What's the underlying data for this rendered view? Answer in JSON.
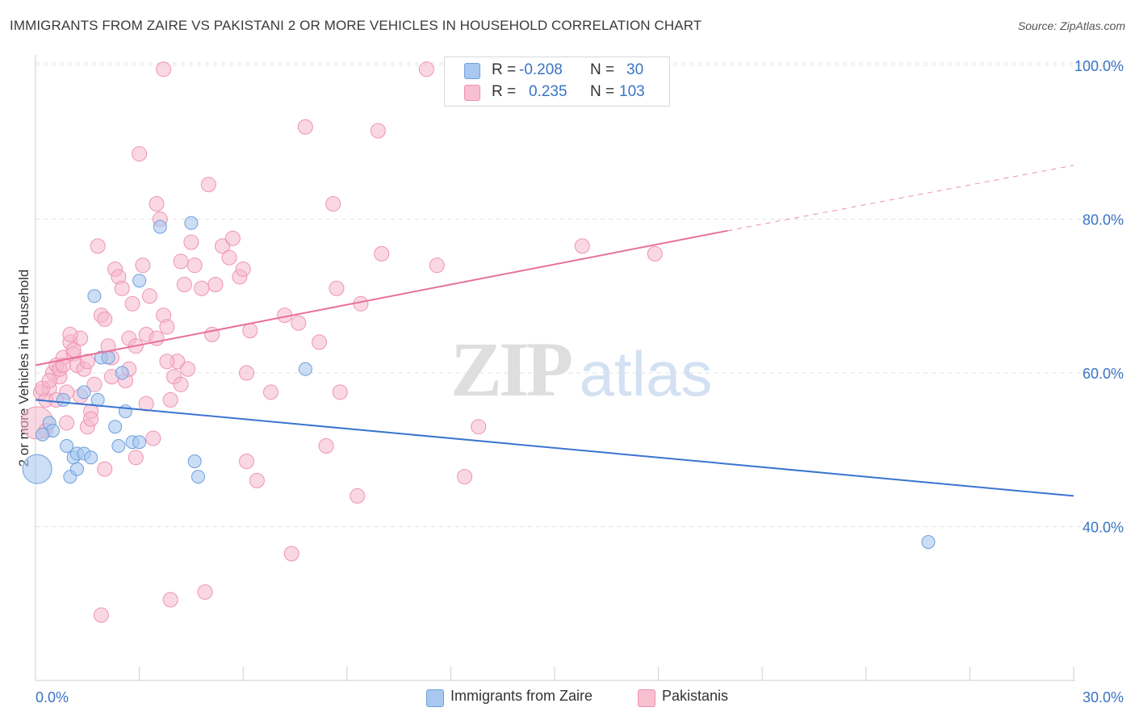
{
  "title": "IMMIGRANTS FROM ZAIRE VS PAKISTANI 2 OR MORE VEHICLES IN HOUSEHOLD CORRELATION CHART",
  "source": "Source: ZipAtlas.com",
  "watermark": {
    "zip": "ZIP",
    "atlas": "atlas"
  },
  "legend": {
    "rows": [
      {
        "r_label": "R =",
        "r_value": "-0.208",
        "n_label": "N =",
        "n_value": "30",
        "color": "#a8c8f0",
        "border": "#6f9fdc"
      },
      {
        "r_label": "R =",
        "r_value": "0.235",
        "n_label": "N =",
        "n_value": "103",
        "color": "#f8bfd0",
        "border": "#ee8fb0"
      }
    ]
  },
  "bottom_legend": [
    {
      "label": "Immigrants from Zaire",
      "color": "#a8c8f0",
      "border": "#6f9fdc"
    },
    {
      "label": "Pakistanis",
      "color": "#f8bfd0",
      "border": "#ee8fb0"
    }
  ],
  "colors": {
    "blue": "#3a74d0",
    "pink": "#e8709a",
    "blue_fill": "#a8c8f0",
    "pink_fill": "#f6b8cc",
    "axis_text": "#3a74c4"
  },
  "chart_data": {
    "type": "scatter",
    "title": "IMMIGRANTS FROM ZAIRE VS PAKISTANI 2 OR MORE VEHICLES IN HOUSEHOLD CORRELATION CHART",
    "xlabel": "",
    "ylabel": "2 or more Vehicles in Household",
    "xlim": [
      0,
      30
    ],
    "ylim": [
      20,
      102
    ],
    "x_ticks": [
      0,
      30
    ],
    "x_tick_labels": [
      "0.0%",
      "30.0%"
    ],
    "y_ticks": [
      40,
      60,
      80,
      100
    ],
    "y_tick_labels": [
      "40.0%",
      "60.0%",
      "80.0%",
      "100.0%"
    ],
    "grid": true,
    "series": [
      {
        "name": "Immigrants from Zaire",
        "points": [
          [
            0.05,
            47.5
          ],
          [
            0.4,
            53.5
          ],
          [
            0.5,
            52.5
          ],
          [
            0.8,
            56.5
          ],
          [
            0.9,
            50.5
          ],
          [
            1.0,
            46.5
          ],
          [
            1.1,
            49.0
          ],
          [
            1.2,
            49.5
          ],
          [
            1.4,
            49.5
          ],
          [
            1.6,
            49.0
          ],
          [
            1.4,
            57.5
          ],
          [
            1.7,
            70.0
          ],
          [
            1.9,
            62.0
          ],
          [
            2.1,
            62.0
          ],
          [
            2.3,
            53.0
          ],
          [
            2.4,
            50.5
          ],
          [
            2.5,
            60.0
          ],
          [
            2.6,
            55.0
          ],
          [
            2.8,
            51.0
          ],
          [
            3.0,
            51.0
          ],
          [
            3.0,
            72.0
          ],
          [
            3.6,
            79.0
          ],
          [
            4.5,
            79.5
          ],
          [
            4.6,
            48.5
          ],
          [
            4.7,
            46.5
          ],
          [
            7.8,
            60.5
          ],
          [
            1.8,
            56.5
          ],
          [
            0.2,
            52.0
          ],
          [
            1.2,
            47.5
          ],
          [
            25.8,
            38.0
          ]
        ],
        "trend": {
          "x0": 0,
          "y0": 56.5,
          "x1": 30,
          "y1": 44.0
        }
      },
      {
        "name": "Pakistanis",
        "points": [
          [
            0.05,
            53.5
          ],
          [
            0.15,
            57.5
          ],
          [
            0.3,
            56.5
          ],
          [
            0.4,
            58.0
          ],
          [
            0.5,
            60.0
          ],
          [
            0.6,
            61.0
          ],
          [
            0.7,
            59.5
          ],
          [
            0.8,
            62.0
          ],
          [
            0.9,
            57.5
          ],
          [
            1.0,
            64.0
          ],
          [
            1.1,
            62.5
          ],
          [
            1.2,
            61.0
          ],
          [
            1.3,
            64.5
          ],
          [
            1.4,
            60.5
          ],
          [
            1.5,
            61.5
          ],
          [
            1.6,
            55.0
          ],
          [
            1.7,
            58.5
          ],
          [
            1.8,
            76.5
          ],
          [
            1.9,
            67.5
          ],
          [
            2.0,
            67.0
          ],
          [
            2.1,
            63.5
          ],
          [
            2.2,
            59.5
          ],
          [
            2.3,
            73.5
          ],
          [
            2.4,
            72.5
          ],
          [
            2.5,
            71.0
          ],
          [
            2.6,
            59.0
          ],
          [
            2.7,
            64.5
          ],
          [
            2.8,
            69.0
          ],
          [
            2.9,
            63.5
          ],
          [
            3.0,
            88.5
          ],
          [
            3.1,
            74.0
          ],
          [
            3.2,
            65.0
          ],
          [
            3.3,
            70.0
          ],
          [
            3.5,
            82.0
          ],
          [
            3.6,
            80.0
          ],
          [
            3.7,
            67.5
          ],
          [
            3.8,
            66.0
          ],
          [
            3.9,
            56.5
          ],
          [
            4.0,
            59.5
          ],
          [
            4.1,
            61.5
          ],
          [
            4.2,
            74.5
          ],
          [
            4.3,
            71.5
          ],
          [
            4.4,
            60.5
          ],
          [
            4.5,
            77.0
          ],
          [
            4.6,
            74.0
          ],
          [
            5.0,
            84.5
          ],
          [
            5.2,
            71.5
          ],
          [
            5.4,
            76.5
          ],
          [
            5.6,
            75.0
          ],
          [
            5.7,
            77.5
          ],
          [
            5.9,
            72.5
          ],
          [
            6.0,
            73.5
          ],
          [
            6.1,
            48.5
          ],
          [
            6.2,
            65.5
          ],
          [
            6.4,
            46.0
          ],
          [
            6.8,
            57.5
          ],
          [
            7.2,
            67.5
          ],
          [
            7.4,
            36.5
          ],
          [
            7.6,
            66.5
          ],
          [
            7.8,
            92.0
          ],
          [
            8.2,
            64.0
          ],
          [
            8.4,
            50.5
          ],
          [
            8.6,
            82.0
          ],
          [
            8.7,
            71.0
          ],
          [
            8.8,
            57.5
          ],
          [
            9.3,
            44.0
          ],
          [
            9.4,
            69.0
          ],
          [
            9.9,
            91.5
          ],
          [
            10.0,
            75.5
          ],
          [
            11.3,
            99.5
          ],
          [
            11.6,
            74.0
          ],
          [
            12.8,
            53.0
          ],
          [
            12.4,
            46.5
          ],
          [
            15.8,
            76.5
          ],
          [
            17.9,
            75.5
          ],
          [
            3.7,
            99.5
          ],
          [
            3.8,
            61.5
          ],
          [
            1.9,
            28.5
          ],
          [
            3.9,
            30.5
          ],
          [
            4.9,
            31.5
          ],
          [
            3.4,
            51.5
          ],
          [
            2.9,
            49.0
          ],
          [
            2.0,
            47.5
          ],
          [
            1.5,
            53.0
          ],
          [
            0.9,
            53.5
          ],
          [
            0.6,
            56.5
          ],
          [
            0.3,
            52.5
          ],
          [
            0.2,
            58.0
          ],
          [
            0.7,
            60.5
          ],
          [
            1.1,
            63.0
          ],
          [
            1.3,
            57.0
          ],
          [
            1.6,
            54.0
          ],
          [
            2.7,
            60.5
          ],
          [
            3.2,
            56.0
          ],
          [
            4.8,
            71.0
          ],
          [
            6.1,
            60.0
          ],
          [
            5.1,
            65.0
          ],
          [
            0.4,
            59.0
          ],
          [
            0.8,
            61.0
          ],
          [
            1.0,
            65.0
          ],
          [
            2.2,
            62.0
          ],
          [
            3.5,
            64.5
          ],
          [
            4.2,
            58.5
          ]
        ],
        "trend": {
          "x0": 0,
          "y0": 61.0,
          "x1": 20.0,
          "y1": 78.5,
          "dash_x1": 30,
          "dash_y1": 87.0
        }
      }
    ]
  }
}
